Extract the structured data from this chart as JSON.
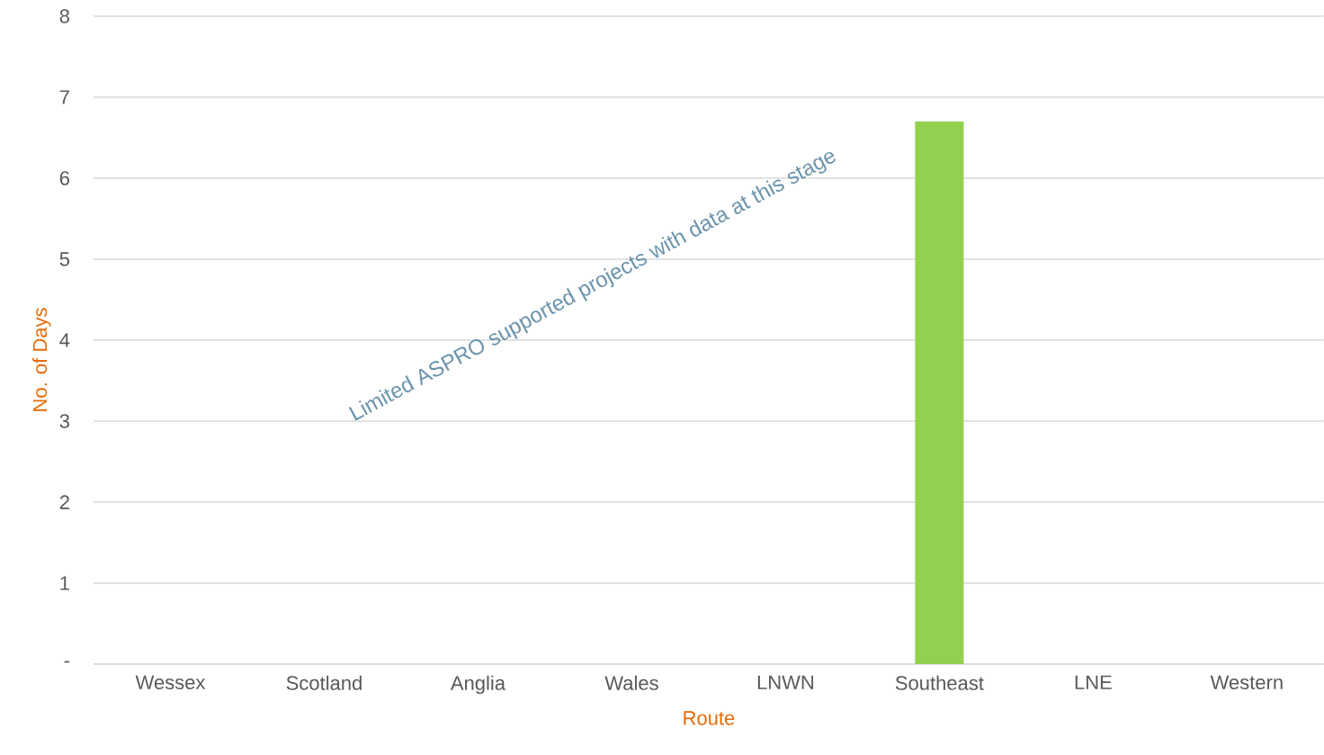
{
  "chart_data": {
    "type": "bar",
    "categories": [
      "Wessex",
      "Scotland",
      "Anglia",
      "Wales",
      "LNWN",
      "Southeast",
      "LNE",
      "Western"
    ],
    "values": [
      null,
      null,
      null,
      null,
      null,
      6.7,
      null,
      null
    ],
    "color": "#92d050",
    "xlabel": "Route",
    "ylabel": "No. of Days",
    "ylim": [
      0,
      8
    ],
    "yticks": [
      {
        "value": 0,
        "label": "-"
      },
      1,
      2,
      3,
      4,
      5,
      6,
      7,
      8
    ],
    "grid": "y",
    "annotations": [
      "Limited ASPRO supported projects with data at this stage"
    ]
  }
}
